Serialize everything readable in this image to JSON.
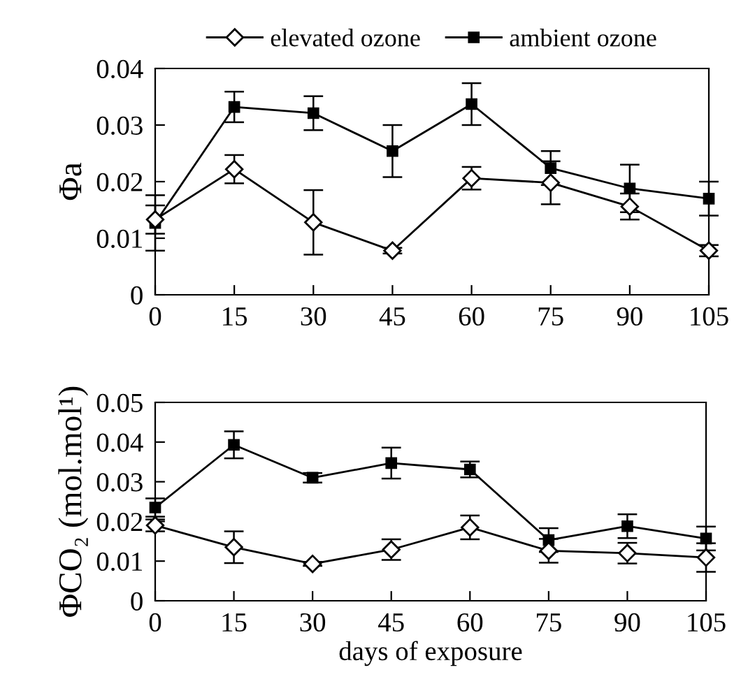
{
  "chart_data": [
    {
      "type": "line",
      "ylabel": "Φa",
      "x": [
        0,
        15,
        30,
        45,
        60,
        75,
        90,
        105
      ],
      "xlim": [
        0,
        105
      ],
      "xticks": [
        0,
        15,
        30,
        45,
        60,
        75,
        90,
        105
      ],
      "ylim": [
        0,
        0.04
      ],
      "yticks": [
        0,
        0.01,
        0.02,
        0.03,
        0.04
      ],
      "grid": false,
      "legend": "top",
      "series": [
        {
          "name": "elevated ozone",
          "color": "#000000",
          "marker": "diamond",
          "values": [
            0.0133,
            0.0222,
            0.0128,
            0.0078,
            0.0206,
            0.0198,
            0.0156,
            0.0078
          ],
          "errors": [
            0.0025,
            0.0025,
            0.0057,
            0.0005,
            0.002,
            0.0038,
            0.0023,
            0.001
          ]
        },
        {
          "name": "ambient ozone",
          "color": "#000000",
          "marker": "square",
          "values": [
            0.0127,
            0.0332,
            0.0321,
            0.0254,
            0.0337,
            0.0224,
            0.0188,
            0.017
          ],
          "errors": [
            0.0049,
            0.0027,
            0.003,
            0.0046,
            0.0037,
            0.003,
            0.0042,
            0.003
          ]
        }
      ]
    },
    {
      "type": "line",
      "ylabel": "ΦCO₂ (mol.mol¹)",
      "xlabel": "days of exposure",
      "x": [
        0,
        15,
        30,
        45,
        60,
        75,
        90,
        105
      ],
      "xlim": [
        0,
        105
      ],
      "xticks": [
        0,
        15,
        30,
        45,
        60,
        75,
        90,
        105
      ],
      "ylim": [
        0,
        0.05
      ],
      "yticks": [
        0,
        0.01,
        0.02,
        0.03,
        0.04,
        0.05
      ],
      "grid": false,
      "series": [
        {
          "color": "#000000",
          "marker": "diamond",
          "values": [
            0.019,
            0.0135,
            0.0093,
            0.0129,
            0.0185,
            0.0126,
            0.012,
            0.0109
          ],
          "errors": [
            0.0015,
            0.004,
            0.0005,
            0.0026,
            0.003,
            0.003,
            0.0026,
            0.0036
          ]
        },
        {
          "color": "#000000",
          "marker": "square",
          "values": [
            0.0235,
            0.0393,
            0.031,
            0.0347,
            0.0331,
            0.0153,
            0.0188,
            0.0157
          ],
          "errors": [
            0.0023,
            0.0034,
            0.0012,
            0.0039,
            0.002,
            0.003,
            0.003,
            0.003
          ]
        }
      ]
    }
  ]
}
